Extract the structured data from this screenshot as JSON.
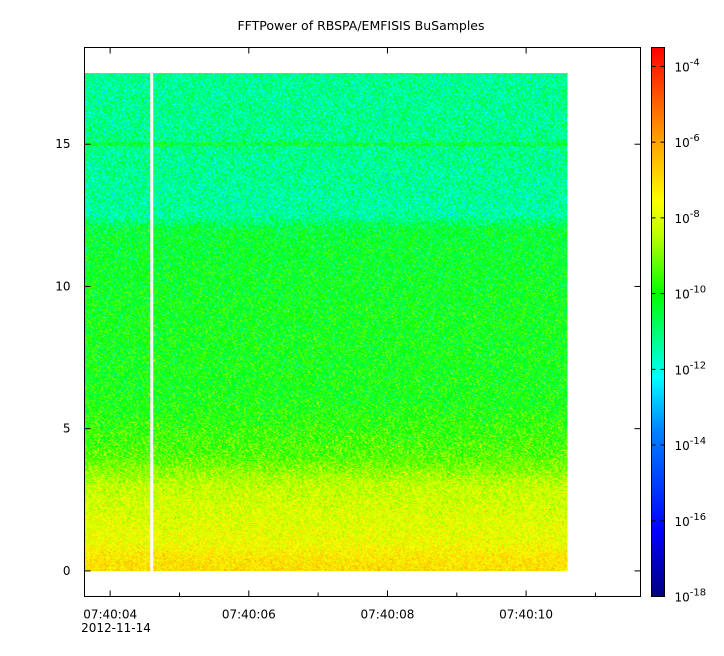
{
  "chart_data": {
    "type": "heatmap",
    "title": "FFTPower of RBSPA/EMFISIS  BuSamples",
    "xlabel": "",
    "ylabel": "",
    "x_ticks": [
      {
        "label": "07:40:04",
        "sub": "2012-11-14",
        "t": 4.0
      },
      {
        "label": "07:40:06",
        "t": 6.0
      },
      {
        "label": "07:40:08",
        "t": 8.0
      },
      {
        "label": "07:40:10",
        "t": 10.0
      }
    ],
    "x_minor_ticks": [
      5.0,
      7.0,
      9.0,
      11.0
    ],
    "xlim_seconds": [
      3.63,
      11.65
    ],
    "data_x_range_seconds": [
      3.63,
      10.6
    ],
    "gap_seconds": 4.6,
    "y_ticks": [
      0,
      5,
      10,
      15
    ],
    "ylim": [
      -0.9,
      18.4
    ],
    "data_y_range": [
      0,
      17.5
    ],
    "colorbar": {
      "scale": "log",
      "range": [
        -18,
        -3.5
      ],
      "tick_exponents": [
        -4,
        -6,
        -8,
        -10,
        -12,
        -14,
        -16,
        -18
      ],
      "tick_base": "10"
    },
    "spectrum_log_power": [
      {
        "freq": 0.0,
        "value": -7.0
      },
      {
        "freq": 0.5,
        "value": -7.2
      },
      {
        "freq": 1.0,
        "value": -7.7
      },
      {
        "freq": 2.0,
        "value": -8.0
      },
      {
        "freq": 3.0,
        "value": -8.3
      },
      {
        "freq": 4.0,
        "value": -9.3
      },
      {
        "freq": 6.0,
        "value": -10.0
      },
      {
        "freq": 9.0,
        "value": -10.1
      },
      {
        "freq": 12.0,
        "value": -10.4
      },
      {
        "freq": 12.5,
        "value": -11.4
      },
      {
        "freq": 15.0,
        "value": -11.2
      },
      {
        "freq": 17.5,
        "value": -11.3
      }
    ]
  }
}
